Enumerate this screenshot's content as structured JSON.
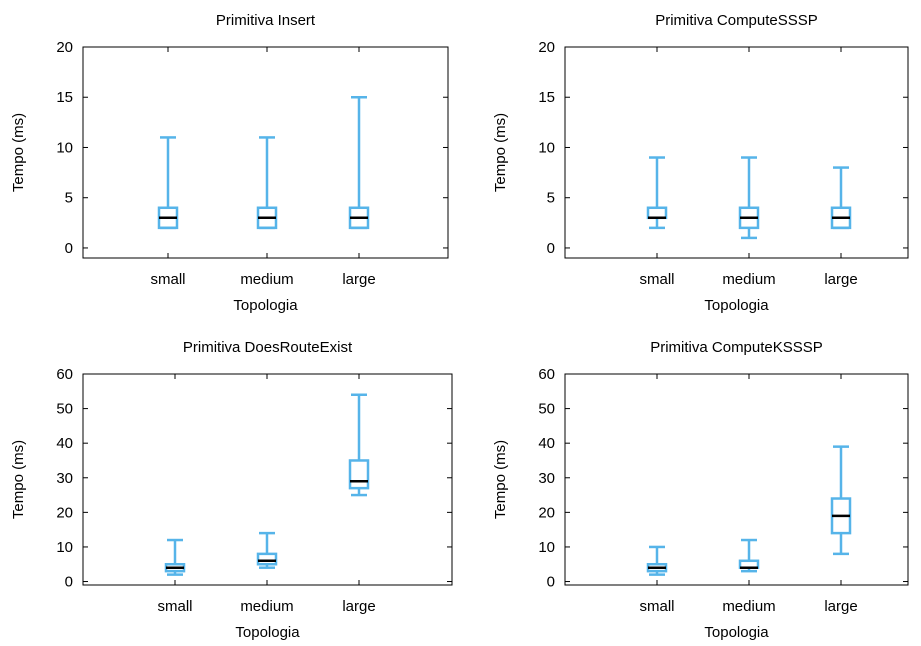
{
  "chart_data": [
    {
      "type": "box",
      "title": "Primitiva Insert",
      "xlabel": "Topologia",
      "ylabel": "Tempo (ms)",
      "ylim": [
        -1,
        20
      ],
      "yticks": [
        0,
        5,
        10,
        15,
        20
      ],
      "categories": [
        "small",
        "medium",
        "large"
      ],
      "boxes": [
        {
          "category": "small",
          "min": 2,
          "q1": 2,
          "median": 3,
          "q3": 4,
          "max": 11
        },
        {
          "category": "medium",
          "min": 2,
          "q1": 2,
          "median": 3,
          "q3": 4,
          "max": 11
        },
        {
          "category": "large",
          "min": 2,
          "q1": 2,
          "median": 3,
          "q3": 4,
          "max": 15
        }
      ]
    },
    {
      "type": "box",
      "title": "Primitiva ComputeSSSP",
      "xlabel": "Topologia",
      "ylabel": "Tempo (ms)",
      "ylim": [
        -1,
        20
      ],
      "yticks": [
        0,
        5,
        10,
        15,
        20
      ],
      "categories": [
        "small",
        "medium",
        "large"
      ],
      "boxes": [
        {
          "category": "small",
          "min": 2,
          "q1": 3,
          "median": 3,
          "q3": 4,
          "max": 9
        },
        {
          "category": "medium",
          "min": 1,
          "q1": 2,
          "median": 3,
          "q3": 4,
          "max": 9
        },
        {
          "category": "large",
          "min": 2,
          "q1": 2,
          "median": 3,
          "q3": 4,
          "max": 8
        }
      ]
    },
    {
      "type": "box",
      "title": "Primitiva DoesRouteExist",
      "xlabel": "Topologia",
      "ylabel": "Tempo (ms)",
      "ylim": [
        -1,
        60
      ],
      "yticks": [
        0,
        10,
        20,
        30,
        40,
        50,
        60
      ],
      "categories": [
        "small",
        "medium",
        "large"
      ],
      "boxes": [
        {
          "category": "small",
          "min": 2,
          "q1": 3,
          "median": 4,
          "q3": 5,
          "max": 12
        },
        {
          "category": "medium",
          "min": 4,
          "q1": 5,
          "median": 6,
          "q3": 8,
          "max": 14
        },
        {
          "category": "large",
          "min": 25,
          "q1": 27,
          "median": 29,
          "q3": 35,
          "max": 54
        }
      ]
    },
    {
      "type": "box",
      "title": "Primitiva ComputeKSSSP",
      "xlabel": "Topologia",
      "ylabel": "Tempo (ms)",
      "ylim": [
        -1,
        60
      ],
      "yticks": [
        0,
        10,
        20,
        30,
        40,
        50,
        60
      ],
      "categories": [
        "small",
        "medium",
        "large"
      ],
      "boxes": [
        {
          "category": "small",
          "min": 2,
          "q1": 3,
          "median": 4,
          "q3": 5,
          "max": 10
        },
        {
          "category": "medium",
          "min": 3,
          "q1": 4,
          "median": 4,
          "q3": 6,
          "max": 12
        },
        {
          "category": "large",
          "min": 8,
          "q1": 14,
          "median": 19,
          "q3": 24,
          "max": 39
        }
      ]
    }
  ],
  "colors": {
    "box": "#56b4e9",
    "median": "#000000"
  }
}
